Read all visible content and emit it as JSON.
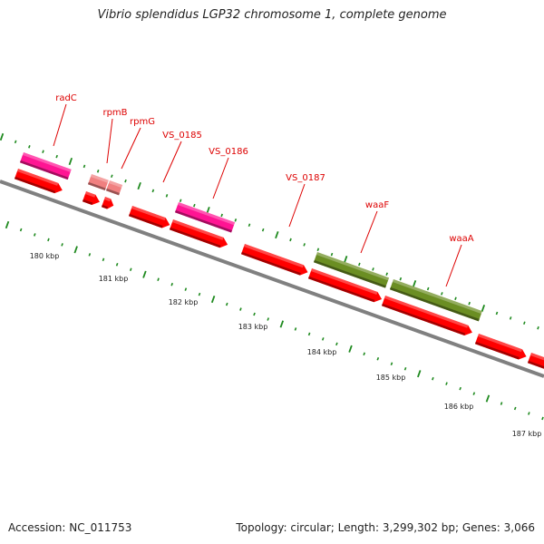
{
  "title": "Vibrio splendidus LGP32 chromosome 1, complete genome",
  "footer": {
    "accession": "Accession: NC_011753",
    "summary": "Topology: circular; Length: 3,299,302 bp; Genes: 3,066"
  },
  "colors": {
    "backbone": "#7c7c7c",
    "tick": "#1f8a1f",
    "label": "#dd0000",
    "gene_red": "#ff0000",
    "gene_pink": "#ff1493",
    "gene_lightred": "#f08080",
    "gene_olive": "#6b8e23"
  },
  "axis": {
    "unit": "kbp",
    "labels": [
      "180 kbp",
      "181 kbp",
      "182 kbp",
      "183 kbp",
      "184 kbp",
      "185 kbp",
      "186 kbp",
      "187 kbp"
    ]
  },
  "gene_labels": [
    "radC",
    "rpmB",
    "rpmG",
    "VS_0185",
    "VS_0186",
    "VS_0187",
    "waaF",
    "waaA"
  ]
}
